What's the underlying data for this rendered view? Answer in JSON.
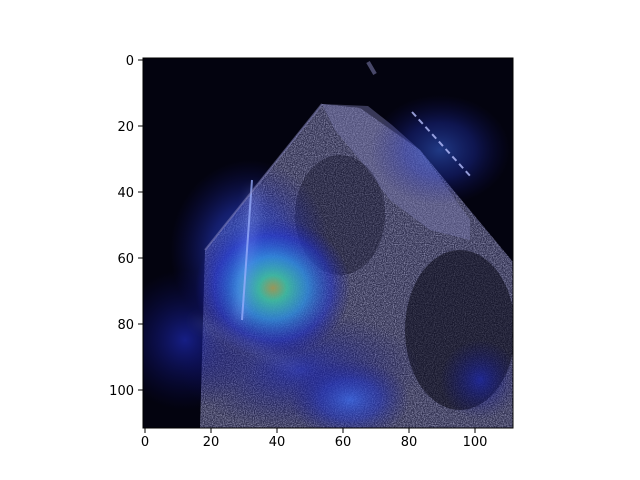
{
  "figure": {
    "x_ticks": [
      "0",
      "20",
      "40",
      "60",
      "80",
      "100"
    ],
    "y_ticks": [
      "0",
      "20",
      "40",
      "60",
      "80",
      "100"
    ]
  },
  "image": {
    "content": "ultrasound-with-heatmap-overlay",
    "colors": {
      "background": "#03030f",
      "tissue": "#5a5a90",
      "heat_low": "#1a2ab8",
      "heat_mid": "#3a6af0",
      "heat_high": "#2fb09a",
      "heat_peak": "#8a8a50"
    }
  },
  "chart_data": {
    "type": "heatmap",
    "title": "",
    "xlabel": "",
    "ylabel": "",
    "xlim": [
      0,
      112
    ],
    "ylim": [
      112,
      0
    ],
    "x_ticks": [
      0,
      20,
      40,
      60,
      80,
      100
    ],
    "y_ticks": [
      0,
      20,
      40,
      60,
      80,
      100
    ],
    "grid": false,
    "legend": "none"
  }
}
